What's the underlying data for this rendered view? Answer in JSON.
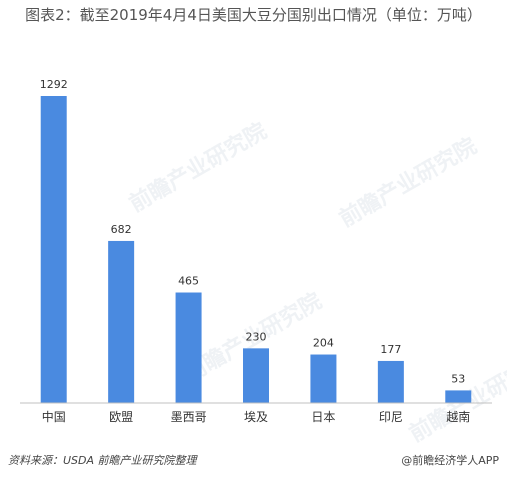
{
  "title": "图表2：截至2019年4月4日美国大豆分国别出口情况（单位：万吨）",
  "source": "资料来源：USDA 前瞻产业研究院整理",
  "brand": "@前瞻经济学人APP",
  "watermark": "前瞻产业研究院",
  "colors": {
    "bar": "#4a8ae0",
    "axis": "#c0c0c0"
  },
  "chart_data": {
    "type": "bar",
    "title": "图表2：截至2019年4月4日美国大豆分国别出口情况（单位：万吨）",
    "categories": [
      "中国",
      "欧盟",
      "墨西哥",
      "埃及",
      "日本",
      "印尼",
      "越南"
    ],
    "values": [
      1292,
      682,
      465,
      230,
      204,
      177,
      53
    ],
    "xlabel": "",
    "ylabel": "",
    "unit": "万吨",
    "ylim": [
      0,
      1292
    ],
    "grid": false,
    "legend": "none"
  }
}
